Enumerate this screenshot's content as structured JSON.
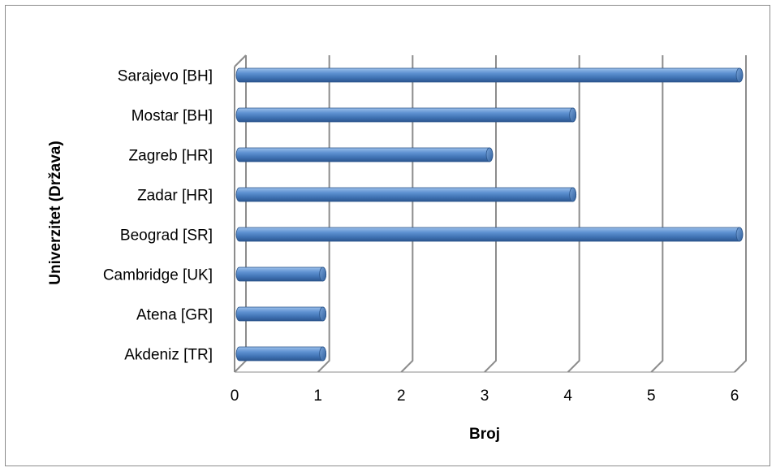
{
  "chart_data": {
    "type": "bar",
    "orientation": "horizontal",
    "style": "3d-cylinder",
    "categories": [
      "Sarajevo [BH]",
      "Mostar [BH]",
      "Zagreb [HR]",
      "Zadar [HR]",
      "Beograd [SR]",
      "Cambridge [UK]",
      "Atena [GR]",
      "Akdeniz [TR]"
    ],
    "values": [
      6,
      4,
      3,
      4,
      6,
      1,
      1,
      1
    ],
    "xlabel": "Broj",
    "ylabel": "Univerzitet (Država)",
    "xlim": [
      0,
      6
    ],
    "xticks": [
      "0",
      "1",
      "2",
      "3",
      "4",
      "5",
      "6"
    ],
    "grid": "vertical",
    "legend": "none",
    "colors": {
      "bar": "#4a7ebf",
      "bar_light": "#8fb4e3",
      "bar_dark": "#2c5a93",
      "grid": "#8c8c8c",
      "frame": "#8c8c8c"
    }
  }
}
